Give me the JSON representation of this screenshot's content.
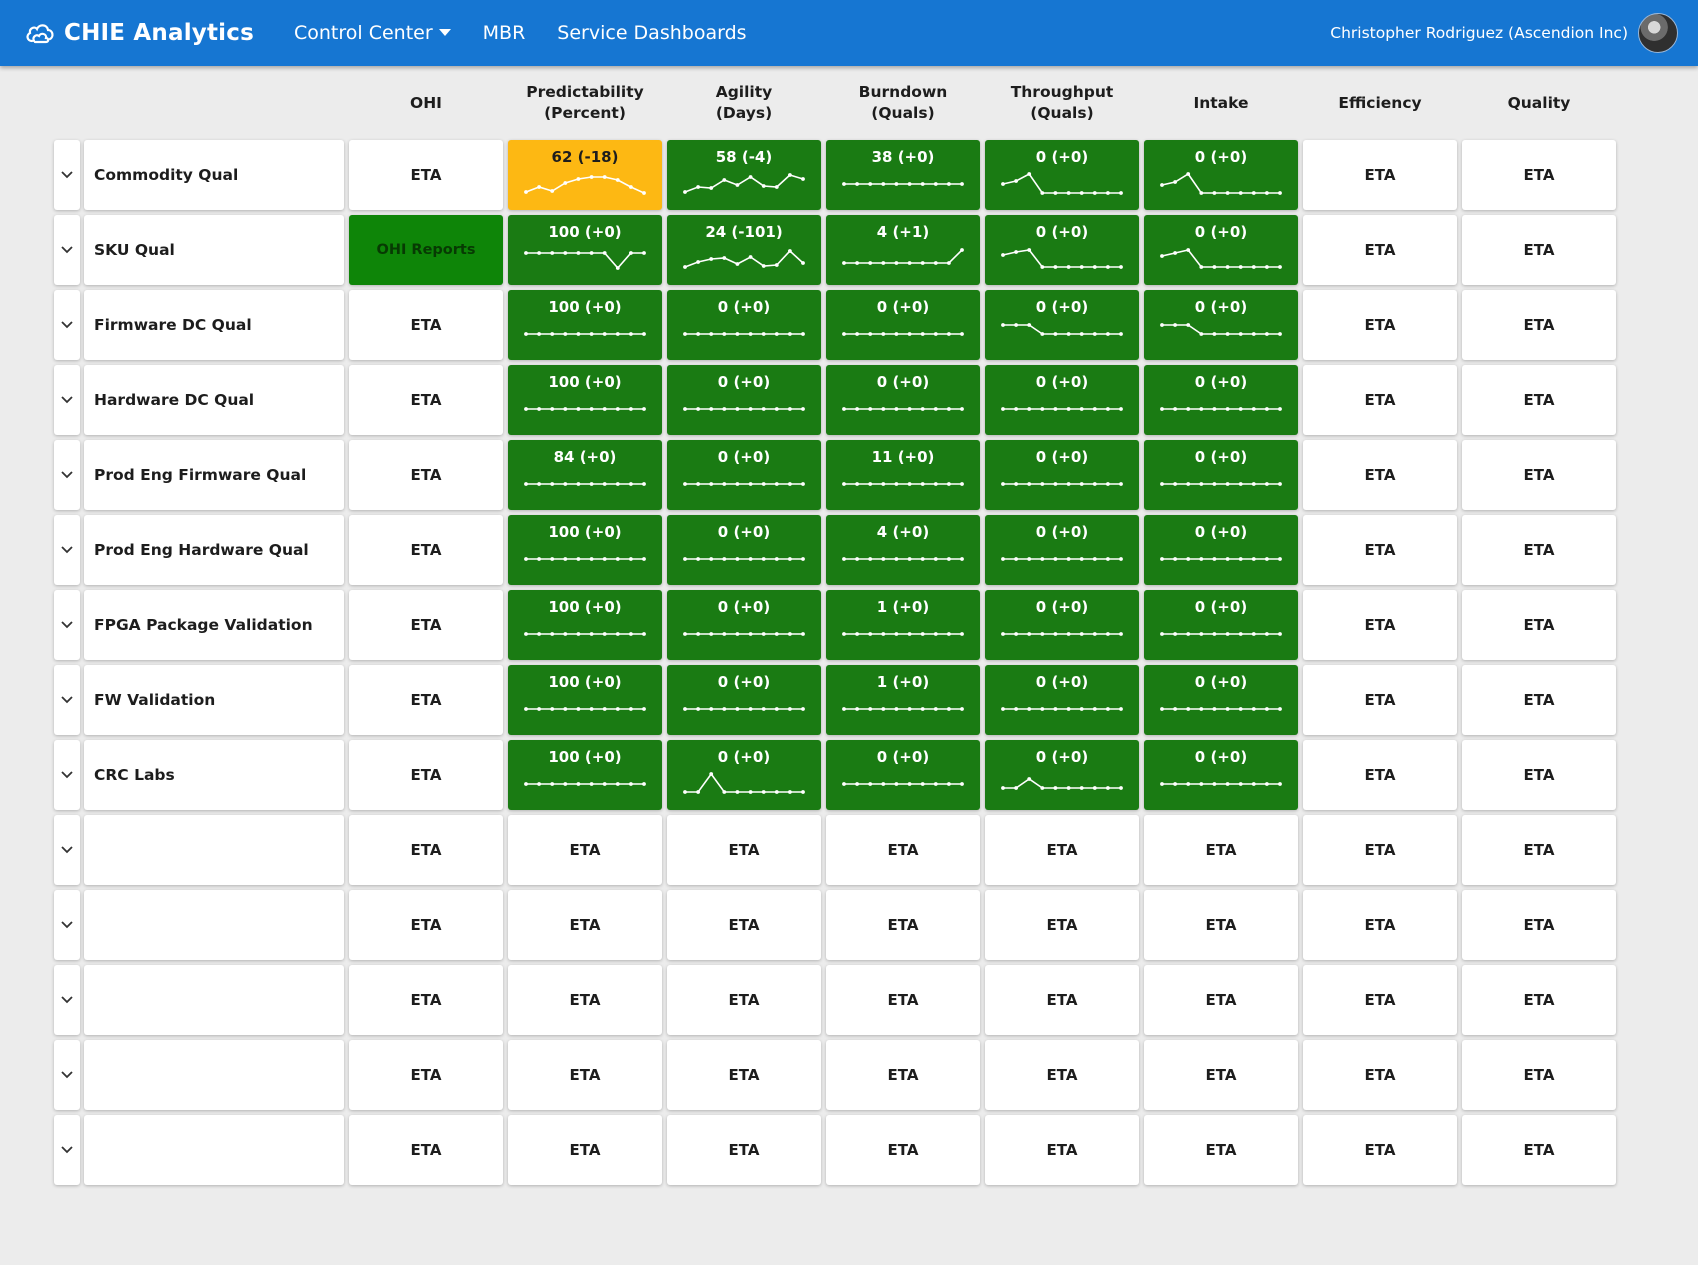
{
  "navbar": {
    "brand": "CHIE Analytics",
    "links": [
      "Control Center",
      "MBR",
      "Service Dashboards"
    ],
    "user": "Christopher Rodriguez (Ascendion Inc)",
    "icons": {
      "brand": "cloud-logo-icon",
      "dropdown": "caret-down-icon",
      "expand": "chevron-down-icon"
    }
  },
  "headers": [
    "OHI",
    "Predictability\n(Percent)",
    "Agility\n(Days)",
    "Burndown\n(Quals)",
    "Throughput\n(Quals)",
    "Intake",
    "Efficiency",
    "Quality"
  ],
  "colors": {
    "nav": "#1676d2",
    "green": "#1a7b13",
    "orange": "#fdb813",
    "ohi_link": "#0e8508"
  },
  "rows": [
    {
      "name": "Commodity Qual",
      "ohi": "ETA",
      "metrics": [
        {
          "label": "62 (-18)",
          "status": "orange",
          "trend": [
            0.1,
            0.35,
            0.15,
            0.55,
            0.75,
            0.85,
            0.85,
            0.7,
            0.35,
            0.05
          ]
        },
        {
          "label": "58 (-4)",
          "status": "green",
          "trend": [
            0.1,
            0.35,
            0.3,
            0.7,
            0.45,
            0.85,
            0.4,
            0.35,
            0.95,
            0.75
          ]
        },
        {
          "label": "38 (+0)",
          "status": "green",
          "trend": [
            0.5,
            0.5,
            0.5,
            0.5,
            0.5,
            0.5,
            0.5,
            0.5,
            0.5,
            0.5
          ]
        },
        {
          "label": "0 (+0)",
          "status": "green",
          "trend": [
            0.5,
            0.65,
            1.0,
            0.05,
            0.05,
            0.05,
            0.05,
            0.05,
            0.05,
            0.05
          ]
        },
        {
          "label": "0 (+0)",
          "status": "green",
          "trend": [
            0.45,
            0.6,
            1.0,
            0.05,
            0.05,
            0.05,
            0.05,
            0.05,
            0.05,
            0.05
          ]
        }
      ],
      "efficiency": "ETA",
      "quality": "ETA"
    },
    {
      "name": "SKU Qual",
      "ohi": "OHI Reports",
      "metrics": [
        {
          "label": "100 (+0)",
          "status": "green",
          "trend": [
            0.8,
            0.8,
            0.8,
            0.8,
            0.8,
            0.8,
            0.8,
            0.05,
            0.8,
            0.8
          ]
        },
        {
          "label": "24 (-101)",
          "status": "green",
          "trend": [
            0.1,
            0.35,
            0.5,
            0.55,
            0.25,
            0.6,
            0.15,
            0.2,
            0.9,
            0.3
          ]
        },
        {
          "label": "4 (+1)",
          "status": "green",
          "trend": [
            0.3,
            0.3,
            0.3,
            0.3,
            0.3,
            0.3,
            0.3,
            0.3,
            0.3,
            0.95
          ]
        },
        {
          "label": "0 (+0)",
          "status": "green",
          "trend": [
            0.7,
            0.85,
            0.95,
            0.1,
            0.1,
            0.1,
            0.1,
            0.1,
            0.1,
            0.1
          ]
        },
        {
          "label": "0 (+0)",
          "status": "green",
          "trend": [
            0.65,
            0.8,
            0.95,
            0.1,
            0.1,
            0.1,
            0.1,
            0.1,
            0.1,
            0.1
          ]
        }
      ],
      "efficiency": "ETA",
      "quality": "ETA"
    },
    {
      "name": "Firmware DC Qual",
      "ohi": "ETA",
      "metrics": [
        {
          "label": "100 (+0)",
          "status": "green",
          "trend": [
            0.5,
            0.5,
            0.5,
            0.5,
            0.5,
            0.5,
            0.5,
            0.5,
            0.5,
            0.5
          ]
        },
        {
          "label": "0 (+0)",
          "status": "green",
          "trend": [
            0.5,
            0.5,
            0.5,
            0.5,
            0.5,
            0.5,
            0.5,
            0.5,
            0.5,
            0.5
          ]
        },
        {
          "label": "0 (+0)",
          "status": "green",
          "trend": [
            0.5,
            0.5,
            0.5,
            0.5,
            0.5,
            0.5,
            0.5,
            0.5,
            0.5,
            0.5
          ]
        },
        {
          "label": "0 (+0)",
          "status": "green",
          "trend": [
            0.95,
            0.95,
            0.95,
            0.5,
            0.5,
            0.5,
            0.5,
            0.5,
            0.5,
            0.5
          ]
        },
        {
          "label": "0 (+0)",
          "status": "green",
          "trend": [
            0.95,
            0.95,
            0.95,
            0.5,
            0.5,
            0.5,
            0.5,
            0.5,
            0.5,
            0.5
          ]
        }
      ],
      "efficiency": "ETA",
      "quality": "ETA"
    },
    {
      "name": "Hardware DC Qual",
      "ohi": "ETA",
      "metrics": [
        {
          "label": "100 (+0)",
          "status": "green",
          "trend": [
            0.5,
            0.5,
            0.5,
            0.5,
            0.5,
            0.5,
            0.5,
            0.5,
            0.5,
            0.5
          ]
        },
        {
          "label": "0 (+0)",
          "status": "green",
          "trend": [
            0.5,
            0.5,
            0.5,
            0.5,
            0.5,
            0.5,
            0.5,
            0.5,
            0.5,
            0.5
          ]
        },
        {
          "label": "0 (+0)",
          "status": "green",
          "trend": [
            0.5,
            0.5,
            0.5,
            0.5,
            0.5,
            0.5,
            0.5,
            0.5,
            0.5,
            0.5
          ]
        },
        {
          "label": "0 (+0)",
          "status": "green",
          "trend": [
            0.5,
            0.5,
            0.5,
            0.5,
            0.5,
            0.5,
            0.5,
            0.5,
            0.5,
            0.5
          ]
        },
        {
          "label": "0 (+0)",
          "status": "green",
          "trend": [
            0.5,
            0.5,
            0.5,
            0.5,
            0.5,
            0.5,
            0.5,
            0.5,
            0.5,
            0.5
          ]
        }
      ],
      "efficiency": "ETA",
      "quality": "ETA"
    },
    {
      "name": "Prod Eng Firmware Qual",
      "ohi": "ETA",
      "metrics": [
        {
          "label": "84 (+0)",
          "status": "green",
          "trend": [
            0.5,
            0.5,
            0.5,
            0.5,
            0.5,
            0.5,
            0.5,
            0.5,
            0.5,
            0.5
          ]
        },
        {
          "label": "0 (+0)",
          "status": "green",
          "trend": [
            0.5,
            0.5,
            0.5,
            0.5,
            0.5,
            0.5,
            0.5,
            0.5,
            0.5,
            0.5
          ]
        },
        {
          "label": "11 (+0)",
          "status": "green",
          "trend": [
            0.5,
            0.5,
            0.5,
            0.5,
            0.5,
            0.5,
            0.5,
            0.5,
            0.5,
            0.5
          ]
        },
        {
          "label": "0 (+0)",
          "status": "green",
          "trend": [
            0.5,
            0.5,
            0.5,
            0.5,
            0.5,
            0.5,
            0.5,
            0.5,
            0.5,
            0.5
          ]
        },
        {
          "label": "0 (+0)",
          "status": "green",
          "trend": [
            0.5,
            0.5,
            0.5,
            0.5,
            0.5,
            0.5,
            0.5,
            0.5,
            0.5,
            0.5
          ]
        }
      ],
      "efficiency": "ETA",
      "quality": "ETA"
    },
    {
      "name": "Prod Eng Hardware Qual",
      "ohi": "ETA",
      "metrics": [
        {
          "label": "100 (+0)",
          "status": "green",
          "trend": [
            0.5,
            0.5,
            0.5,
            0.5,
            0.5,
            0.5,
            0.5,
            0.5,
            0.5,
            0.5
          ]
        },
        {
          "label": "0 (+0)",
          "status": "green",
          "trend": [
            0.5,
            0.5,
            0.5,
            0.5,
            0.5,
            0.5,
            0.5,
            0.5,
            0.5,
            0.5
          ]
        },
        {
          "label": "4 (+0)",
          "status": "green",
          "trend": [
            0.5,
            0.5,
            0.5,
            0.5,
            0.5,
            0.5,
            0.5,
            0.5,
            0.5,
            0.5
          ]
        },
        {
          "label": "0 (+0)",
          "status": "green",
          "trend": [
            0.5,
            0.5,
            0.5,
            0.5,
            0.5,
            0.5,
            0.5,
            0.5,
            0.5,
            0.5
          ]
        },
        {
          "label": "0 (+0)",
          "status": "green",
          "trend": [
            0.5,
            0.5,
            0.5,
            0.5,
            0.5,
            0.5,
            0.5,
            0.5,
            0.5,
            0.5
          ]
        }
      ],
      "efficiency": "ETA",
      "quality": "ETA"
    },
    {
      "name": "FPGA Package Validation",
      "ohi": "ETA",
      "metrics": [
        {
          "label": "100 (+0)",
          "status": "green",
          "trend": [
            0.5,
            0.5,
            0.5,
            0.5,
            0.5,
            0.5,
            0.5,
            0.5,
            0.5,
            0.5
          ]
        },
        {
          "label": "0 (+0)",
          "status": "green",
          "trend": [
            0.5,
            0.5,
            0.5,
            0.5,
            0.5,
            0.5,
            0.5,
            0.5,
            0.5,
            0.5
          ]
        },
        {
          "label": "1 (+0)",
          "status": "green",
          "trend": [
            0.5,
            0.5,
            0.5,
            0.5,
            0.5,
            0.5,
            0.5,
            0.5,
            0.5,
            0.5
          ]
        },
        {
          "label": "0 (+0)",
          "status": "green",
          "trend": [
            0.5,
            0.5,
            0.5,
            0.5,
            0.5,
            0.5,
            0.5,
            0.5,
            0.5,
            0.5
          ]
        },
        {
          "label": "0 (+0)",
          "status": "green",
          "trend": [
            0.5,
            0.5,
            0.5,
            0.5,
            0.5,
            0.5,
            0.5,
            0.5,
            0.5,
            0.5
          ]
        }
      ],
      "efficiency": "ETA",
      "quality": "ETA"
    },
    {
      "name": "FW Validation",
      "ohi": "ETA",
      "metrics": [
        {
          "label": "100 (+0)",
          "status": "green",
          "trend": [
            0.5,
            0.5,
            0.5,
            0.5,
            0.5,
            0.5,
            0.5,
            0.5,
            0.5,
            0.5
          ]
        },
        {
          "label": "0 (+0)",
          "status": "green",
          "trend": [
            0.5,
            0.5,
            0.5,
            0.5,
            0.5,
            0.5,
            0.5,
            0.5,
            0.5,
            0.5
          ]
        },
        {
          "label": "1 (+0)",
          "status": "green",
          "trend": [
            0.5,
            0.5,
            0.5,
            0.5,
            0.5,
            0.5,
            0.5,
            0.5,
            0.5,
            0.5
          ]
        },
        {
          "label": "0 (+0)",
          "status": "green",
          "trend": [
            0.5,
            0.5,
            0.5,
            0.5,
            0.5,
            0.5,
            0.5,
            0.5,
            0.5,
            0.5
          ]
        },
        {
          "label": "0 (+0)",
          "status": "green",
          "trend": [
            0.5,
            0.5,
            0.5,
            0.5,
            0.5,
            0.5,
            0.5,
            0.5,
            0.5,
            0.5
          ]
        }
      ],
      "efficiency": "ETA",
      "quality": "ETA"
    },
    {
      "name": "CRC Labs",
      "ohi": "ETA",
      "metrics": [
        {
          "label": "100 (+0)",
          "status": "green",
          "trend": [
            0.5,
            0.5,
            0.5,
            0.5,
            0.5,
            0.5,
            0.5,
            0.5,
            0.5,
            0.5
          ]
        },
        {
          "label": "0 (+0)",
          "status": "green",
          "trend": [
            0.1,
            0.1,
            1.0,
            0.1,
            0.1,
            0.1,
            0.1,
            0.1,
            0.1,
            0.1
          ]
        },
        {
          "label": "0 (+0)",
          "status": "green",
          "trend": [
            0.5,
            0.5,
            0.5,
            0.5,
            0.5,
            0.5,
            0.5,
            0.5,
            0.5,
            0.5
          ]
        },
        {
          "label": "0 (+0)",
          "status": "green",
          "trend": [
            0.3,
            0.3,
            0.75,
            0.3,
            0.3,
            0.3,
            0.3,
            0.3,
            0.3,
            0.3
          ]
        },
        {
          "label": "0 (+0)",
          "status": "green",
          "trend": [
            0.5,
            0.5,
            0.5,
            0.5,
            0.5,
            0.5,
            0.5,
            0.5,
            0.5,
            0.5
          ]
        }
      ],
      "efficiency": "ETA",
      "quality": "ETA"
    },
    {
      "name": "",
      "ohi": "ETA",
      "metrics": [
        {
          "label": "ETA",
          "status": "white"
        },
        {
          "label": "ETA",
          "status": "white"
        },
        {
          "label": "ETA",
          "status": "white"
        },
        {
          "label": "ETA",
          "status": "white"
        },
        {
          "label": "ETA",
          "status": "white"
        }
      ],
      "efficiency": "ETA",
      "quality": "ETA"
    },
    {
      "name": "",
      "ohi": "ETA",
      "metrics": [
        {
          "label": "ETA",
          "status": "white"
        },
        {
          "label": "ETA",
          "status": "white"
        },
        {
          "label": "ETA",
          "status": "white"
        },
        {
          "label": "ETA",
          "status": "white"
        },
        {
          "label": "ETA",
          "status": "white"
        }
      ],
      "efficiency": "ETA",
      "quality": "ETA"
    },
    {
      "name": "",
      "ohi": "ETA",
      "metrics": [
        {
          "label": "ETA",
          "status": "white"
        },
        {
          "label": "ETA",
          "status": "white"
        },
        {
          "label": "ETA",
          "status": "white"
        },
        {
          "label": "ETA",
          "status": "white"
        },
        {
          "label": "ETA",
          "status": "white"
        }
      ],
      "efficiency": "ETA",
      "quality": "ETA"
    },
    {
      "name": "",
      "ohi": "ETA",
      "metrics": [
        {
          "label": "ETA",
          "status": "white"
        },
        {
          "label": "ETA",
          "status": "white"
        },
        {
          "label": "ETA",
          "status": "white"
        },
        {
          "label": "ETA",
          "status": "white"
        },
        {
          "label": "ETA",
          "status": "white"
        }
      ],
      "efficiency": "ETA",
      "quality": "ETA"
    },
    {
      "name": "",
      "ohi": "ETA",
      "metrics": [
        {
          "label": "ETA",
          "status": "white"
        },
        {
          "label": "ETA",
          "status": "white"
        },
        {
          "label": "ETA",
          "status": "white"
        },
        {
          "label": "ETA",
          "status": "white"
        },
        {
          "label": "ETA",
          "status": "white"
        }
      ],
      "efficiency": "ETA",
      "quality": "ETA"
    }
  ]
}
